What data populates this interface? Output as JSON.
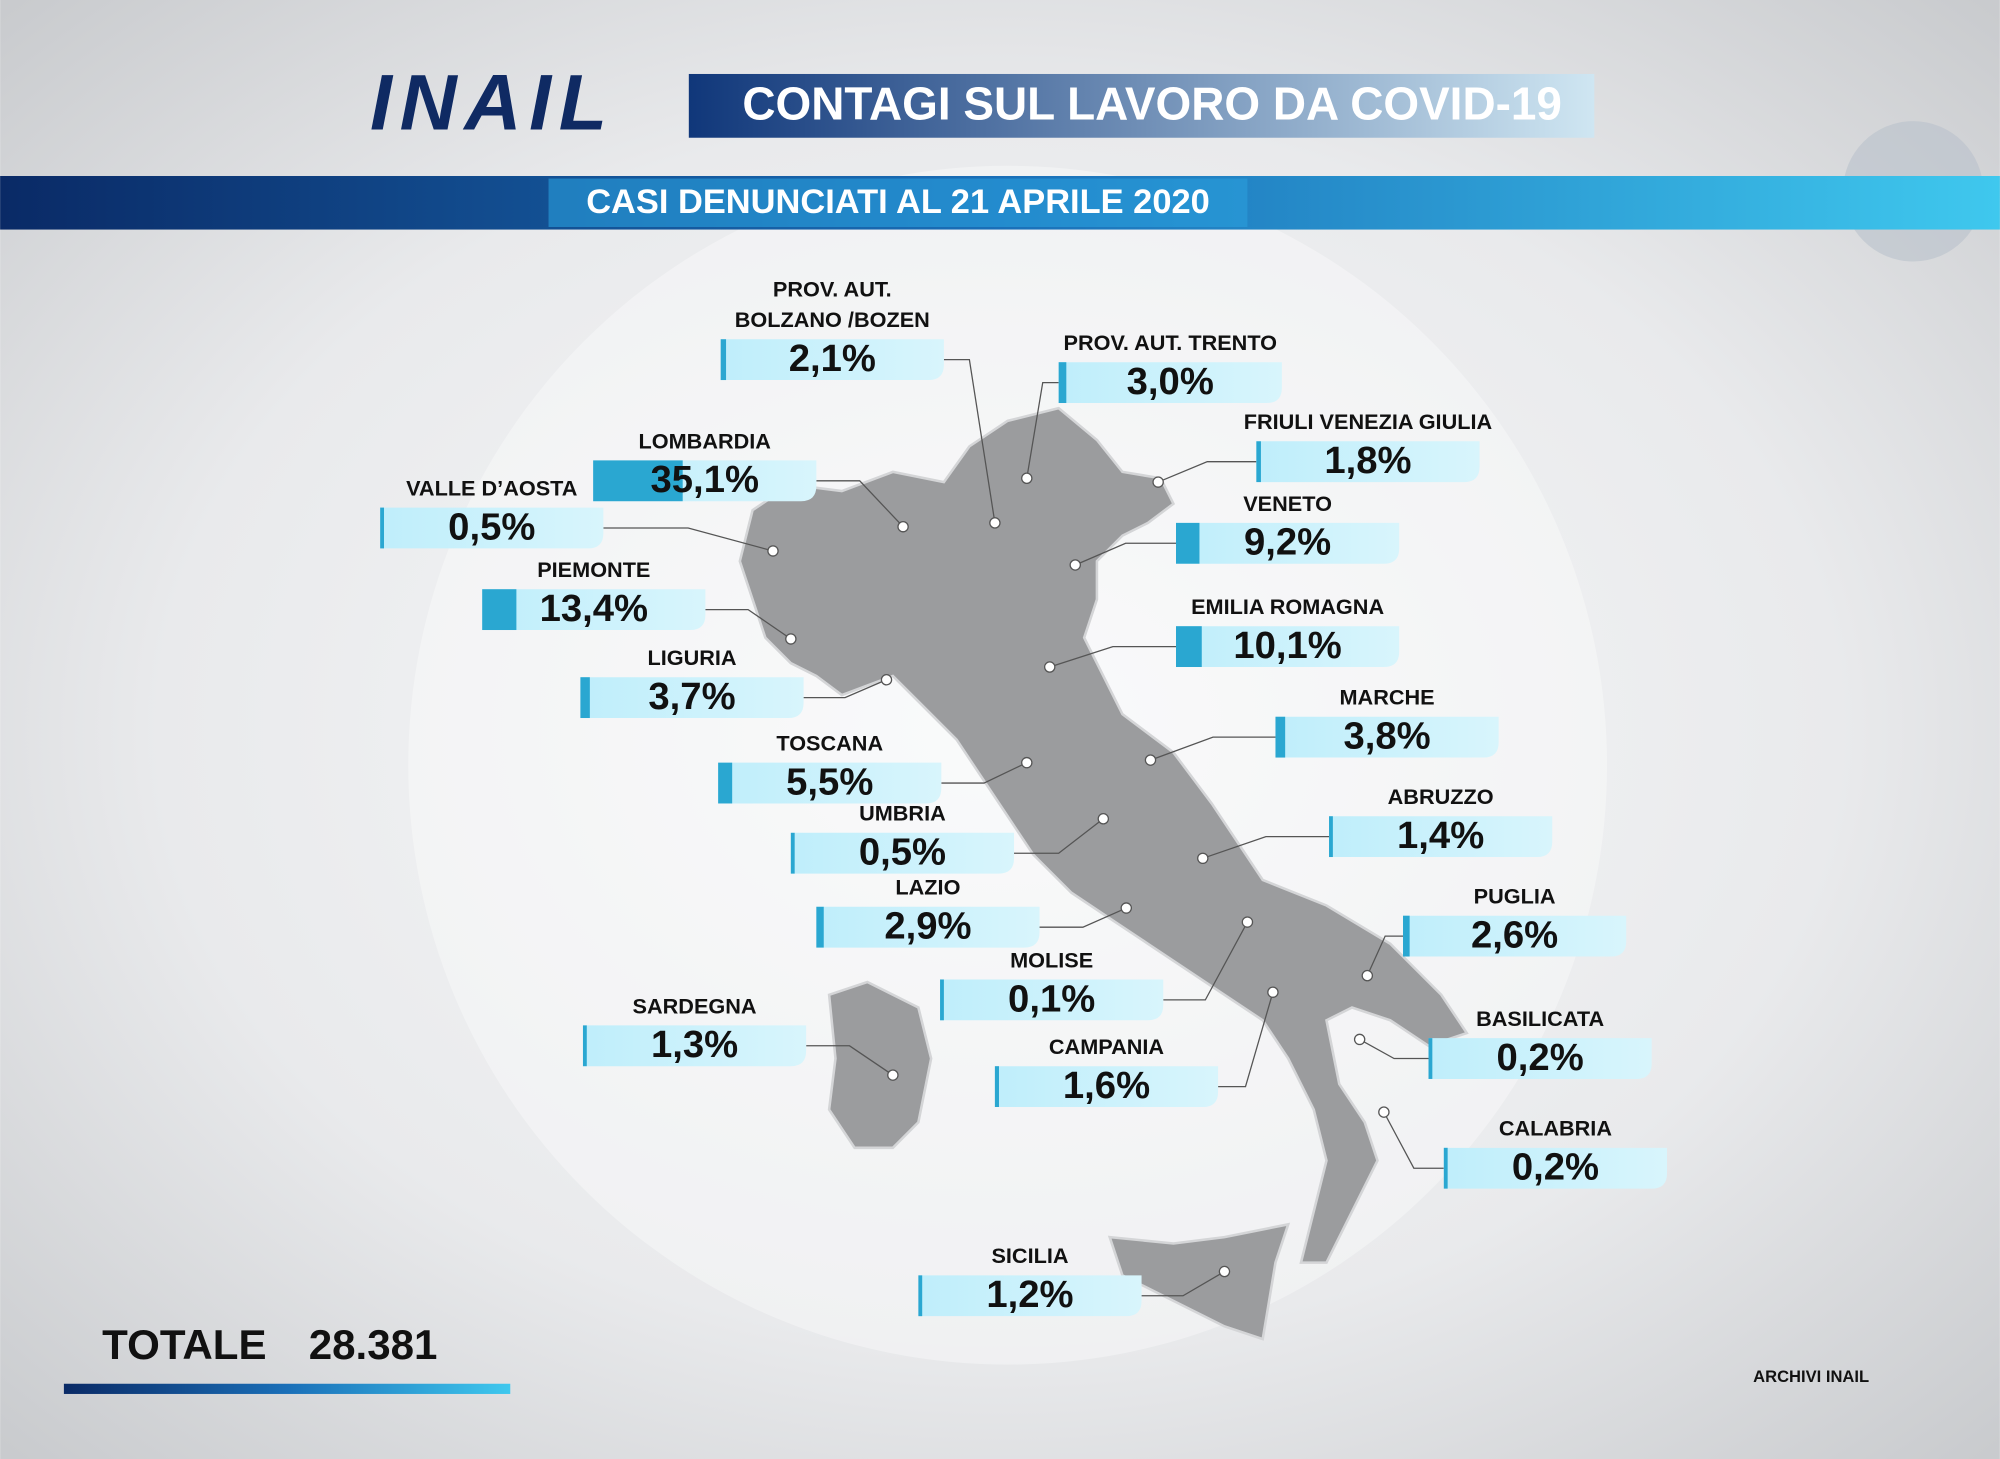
{
  "header": {
    "logo": "INAIL",
    "title": "CONTAGI SUL LAVORO DA COVID-19",
    "subtitle": "CASI DENUNCIATI AL 21 APRILE 2020"
  },
  "regions": [
    {
      "label": [
        "PROV. AUT.",
        "BOLZANO /BOZEN"
      ],
      "value": 2.1,
      "value_label": "2,1%"
    },
    {
      "label": [
        "PROV. AUT. TRENTO"
      ],
      "value": 3.0,
      "value_label": "3,0%"
    },
    {
      "label": [
        "FRIULI VENEZIA GIULIA"
      ],
      "value": 1.8,
      "value_label": "1,8%"
    },
    {
      "label": [
        "LOMBARDIA"
      ],
      "value": 35.1,
      "value_label": "35,1%"
    },
    {
      "label": [
        "VALLE D’AOSTA"
      ],
      "value": 0.5,
      "value_label": "0,5%"
    },
    {
      "label": [
        "VENETO"
      ],
      "value": 9.2,
      "value_label": "9,2%"
    },
    {
      "label": [
        "PIEMONTE"
      ],
      "value": 13.4,
      "value_label": "13,4%"
    },
    {
      "label": [
        "EMILIA ROMAGNA"
      ],
      "value": 10.1,
      "value_label": "10,1%"
    },
    {
      "label": [
        "LIGURIA"
      ],
      "value": 3.7,
      "value_label": "3,7%"
    },
    {
      "label": [
        "MARCHE"
      ],
      "value": 3.8,
      "value_label": "3,8%"
    },
    {
      "label": [
        "TOSCANA"
      ],
      "value": 5.5,
      "value_label": "5,5%"
    },
    {
      "label": [
        "ABRUZZO"
      ],
      "value": 1.4,
      "value_label": "1,4%"
    },
    {
      "label": [
        "UMBRIA"
      ],
      "value": 0.5,
      "value_label": "0,5%"
    },
    {
      "label": [
        "LAZIO"
      ],
      "value": 2.9,
      "value_label": "2,9%"
    },
    {
      "label": [
        "PUGLIA"
      ],
      "value": 2.6,
      "value_label": "2,6%"
    },
    {
      "label": [
        "MOLISE"
      ],
      "value": 0.1,
      "value_label": "0,1%"
    },
    {
      "label": [
        "SARDEGNA"
      ],
      "value": 1.3,
      "value_label": "1,3%"
    },
    {
      "label": [
        "BASILICATA"
      ],
      "value": 0.2,
      "value_label": "0,2%"
    },
    {
      "label": [
        "CAMPANIA"
      ],
      "value": 1.6,
      "value_label": "1,6%"
    },
    {
      "label": [
        "CALABRIA"
      ],
      "value": 0.2,
      "value_label": "0,2%"
    },
    {
      "label": [
        "SICILIA"
      ],
      "value": 1.2,
      "value_label": "1,2%"
    }
  ],
  "total": {
    "label": "TOTALE",
    "value": "28.381"
  },
  "credit": "ARCHIVI INAIL"
}
